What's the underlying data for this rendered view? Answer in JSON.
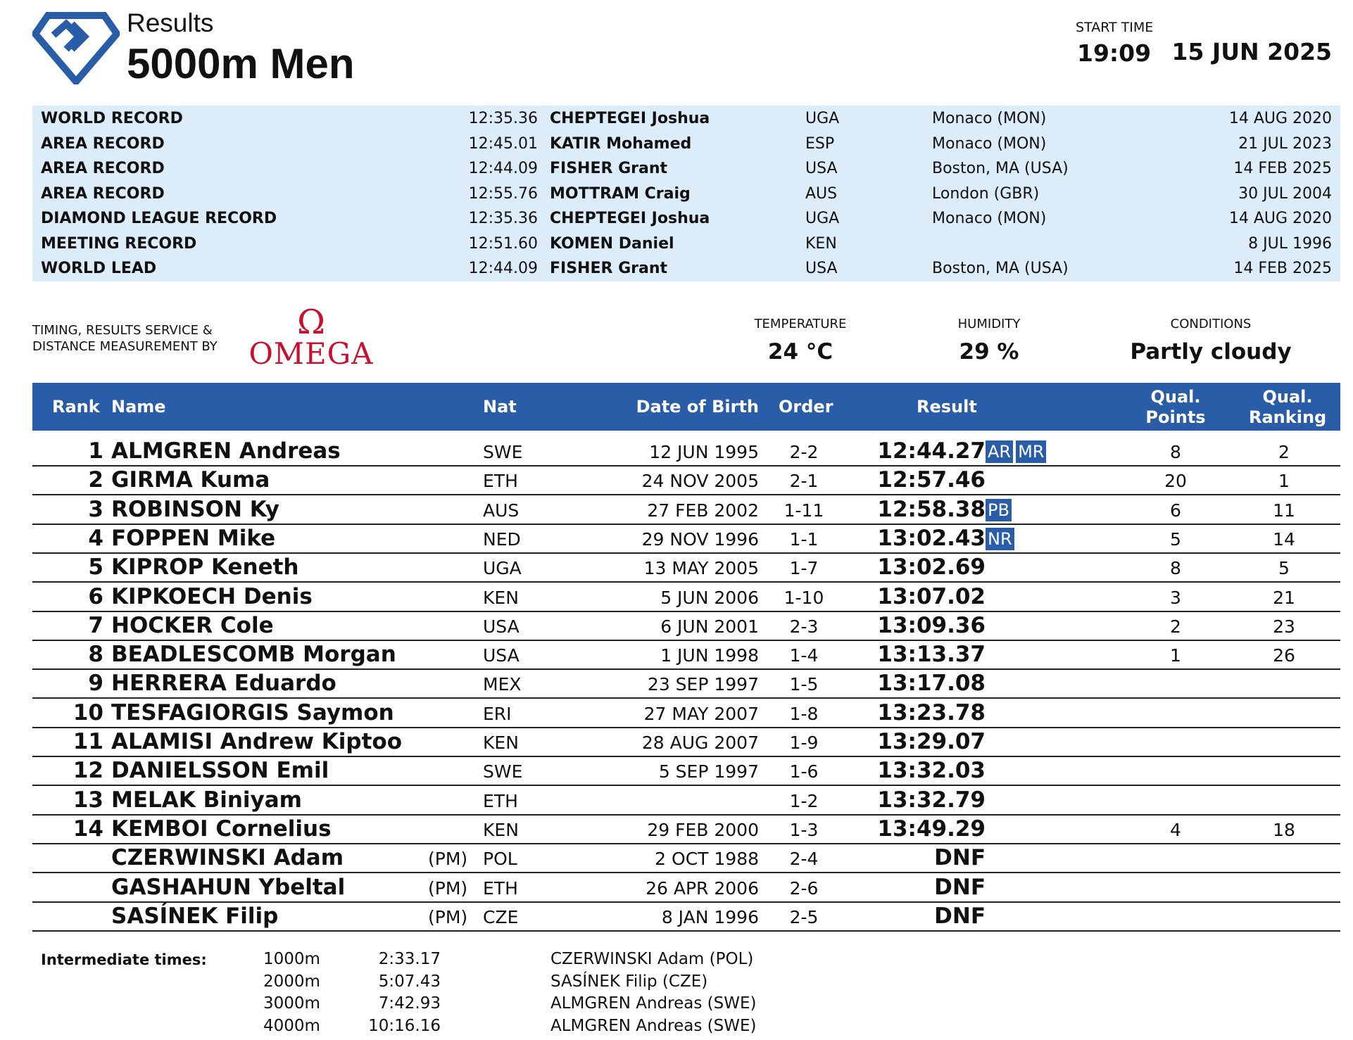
{
  "header": {
    "results_label": "Results",
    "event_title": "5000m Men",
    "start_time_label": "START TIME",
    "start_time": "19:09",
    "date": "15 JUN 2025",
    "logo_icon": "diamond-league-logo-icon",
    "brand_color": "#2a5da8"
  },
  "records": [
    {
      "name": "WORLD RECORD",
      "time": "12:35.36",
      "athlete": "CHEPTEGEI Joshua",
      "nat": "UGA",
      "venue": "Monaco (MON)",
      "date": "14 AUG 2020"
    },
    {
      "name": "AREA RECORD",
      "time": "12:45.01",
      "athlete": "KATIR Mohamed",
      "nat": "ESP",
      "venue": "Monaco (MON)",
      "date": "21 JUL 2023"
    },
    {
      "name": "AREA RECORD",
      "time": "12:44.09",
      "athlete": "FISHER Grant",
      "nat": "USA",
      "venue": "Boston, MA (USA)",
      "date": "14 FEB 2025"
    },
    {
      "name": "AREA RECORD",
      "time": "12:55.76",
      "athlete": "MOTTRAM Craig",
      "nat": "AUS",
      "venue": "London (GBR)",
      "date": "30 JUL 2004"
    },
    {
      "name": "DIAMOND LEAGUE RECORD",
      "time": "12:35.36",
      "athlete": "CHEPTEGEI Joshua",
      "nat": "UGA",
      "venue": "Monaco (MON)",
      "date": "14 AUG 2020"
    },
    {
      "name": "MEETING RECORD",
      "time": "12:51.60",
      "athlete": "KOMEN Daniel",
      "nat": "KEN",
      "venue": "",
      "date": "8 JUL 1996"
    },
    {
      "name": "WORLD LEAD",
      "time": "12:44.09",
      "athlete": "FISHER Grant",
      "nat": "USA",
      "venue": "Boston, MA (USA)",
      "date": "14 FEB 2025"
    }
  ],
  "timing": {
    "label_line1": "TIMING, RESULTS SERVICE &",
    "label_line2": "DISTANCE MEASUREMENT BY",
    "brand": "OMEGA",
    "brand_symbol": "Ω",
    "brand_color": "#c8102e"
  },
  "weather": {
    "temperature_label": "TEMPERATURE",
    "temperature": "24 °C",
    "humidity_label": "HUMIDITY",
    "humidity": "29 %",
    "conditions_label": "CONDITIONS",
    "conditions": "Partly cloudy"
  },
  "table": {
    "headers": {
      "rank": "Rank",
      "name": "Name",
      "nat": "Nat",
      "dob": "Date of Birth",
      "order": "Order",
      "result": "Result",
      "qual_points_1": "Qual.",
      "qual_points_2": "Points",
      "qual_ranking_1": "Qual.",
      "qual_ranking_2": "Ranking"
    },
    "rows": [
      {
        "rank": "1",
        "name": "ALMGREN Andreas",
        "pm": "",
        "nat": "SWE",
        "dob": "12 JUN 1995",
        "order": "2-2",
        "result": "12:44.27",
        "badges": [
          "AR",
          "MR"
        ],
        "qual_points": "8",
        "qual_ranking": "2"
      },
      {
        "rank": "2",
        "name": "GIRMA Kuma",
        "pm": "",
        "nat": "ETH",
        "dob": "24 NOV 2005",
        "order": "2-1",
        "result": "12:57.46",
        "badges": [],
        "qual_points": "20",
        "qual_ranking": "1"
      },
      {
        "rank": "3",
        "name": "ROBINSON Ky",
        "pm": "",
        "nat": "AUS",
        "dob": "27 FEB 2002",
        "order": "1-11",
        "result": "12:58.38",
        "badges": [
          "PB"
        ],
        "qual_points": "6",
        "qual_ranking": "11"
      },
      {
        "rank": "4",
        "name": "FOPPEN Mike",
        "pm": "",
        "nat": "NED",
        "dob": "29 NOV 1996",
        "order": "1-1",
        "result": "13:02.43",
        "badges": [
          "NR"
        ],
        "qual_points": "5",
        "qual_ranking": "14"
      },
      {
        "rank": "5",
        "name": "KIPROP Keneth",
        "pm": "",
        "nat": "UGA",
        "dob": "13 MAY 2005",
        "order": "1-7",
        "result": "13:02.69",
        "badges": [],
        "qual_points": "8",
        "qual_ranking": "5"
      },
      {
        "rank": "6",
        "name": "KIPKOECH Denis",
        "pm": "",
        "nat": "KEN",
        "dob": "5 JUN 2006",
        "order": "1-10",
        "result": "13:07.02",
        "badges": [],
        "qual_points": "3",
        "qual_ranking": "21"
      },
      {
        "rank": "7",
        "name": "HOCKER Cole",
        "pm": "",
        "nat": "USA",
        "dob": "6 JUN 2001",
        "order": "2-3",
        "result": "13:09.36",
        "badges": [],
        "qual_points": "2",
        "qual_ranking": "23"
      },
      {
        "rank": "8",
        "name": "BEADLESCOMB Morgan",
        "pm": "",
        "nat": "USA",
        "dob": "1 JUN 1998",
        "order": "1-4",
        "result": "13:13.37",
        "badges": [],
        "qual_points": "1",
        "qual_ranking": "26"
      },
      {
        "rank": "9",
        "name": "HERRERA Eduardo",
        "pm": "",
        "nat": "MEX",
        "dob": "23 SEP 1997",
        "order": "1-5",
        "result": "13:17.08",
        "badges": [],
        "qual_points": "",
        "qual_ranking": ""
      },
      {
        "rank": "10",
        "name": "TESFAGIORGIS Saymon",
        "pm": "",
        "nat": "ERI",
        "dob": "27 MAY 2007",
        "order": "1-8",
        "result": "13:23.78",
        "badges": [],
        "qual_points": "",
        "qual_ranking": ""
      },
      {
        "rank": "11",
        "name": "ALAMISI Andrew Kiptoo",
        "pm": "",
        "nat": "KEN",
        "dob": "28 AUG 2007",
        "order": "1-9",
        "result": "13:29.07",
        "badges": [],
        "qual_points": "",
        "qual_ranking": ""
      },
      {
        "rank": "12",
        "name": "DANIELSSON Emil",
        "pm": "",
        "nat": "SWE",
        "dob": "5 SEP 1997",
        "order": "1-6",
        "result": "13:32.03",
        "badges": [],
        "qual_points": "",
        "qual_ranking": ""
      },
      {
        "rank": "13",
        "name": "MELAK Biniyam",
        "pm": "",
        "nat": "ETH",
        "dob": "",
        "order": "1-2",
        "result": "13:32.79",
        "badges": [],
        "qual_points": "",
        "qual_ranking": ""
      },
      {
        "rank": "14",
        "name": "KEMBOI Cornelius",
        "pm": "",
        "nat": "KEN",
        "dob": "29 FEB 2000",
        "order": "1-3",
        "result": "13:49.29",
        "badges": [],
        "qual_points": "4",
        "qual_ranking": "18"
      },
      {
        "rank": "",
        "name": "CZERWINSKI Adam",
        "pm": "(PM)",
        "nat": "POL",
        "dob": "2 OCT 1988",
        "order": "2-4",
        "result": "DNF",
        "badges": [],
        "qual_points": "",
        "qual_ranking": ""
      },
      {
        "rank": "",
        "name": "GASHAHUN Ybeltal",
        "pm": "(PM)",
        "nat": "ETH",
        "dob": "26 APR 2006",
        "order": "2-6",
        "result": "DNF",
        "badges": [],
        "qual_points": "",
        "qual_ranking": ""
      },
      {
        "rank": "",
        "name": "SASÍNEK Filip",
        "pm": "(PM)",
        "nat": "CZE",
        "dob": "8 JAN 1996",
        "order": "2-5",
        "result": "DNF",
        "badges": [],
        "qual_points": "",
        "qual_ranking": ""
      }
    ]
  },
  "intermediate": {
    "label": "Intermediate times:",
    "splits": [
      {
        "distance": "1000m",
        "time": "2:33.17",
        "leader": "CZERWINSKI Adam (POL)"
      },
      {
        "distance": "2000m",
        "time": "5:07.43",
        "leader": "SASÍNEK Filip (CZE)"
      },
      {
        "distance": "3000m",
        "time": "7:42.93",
        "leader": "ALMGREN Andreas (SWE)"
      },
      {
        "distance": "4000m",
        "time": "10:16.16",
        "leader": "ALMGREN Andreas (SWE)"
      }
    ]
  }
}
